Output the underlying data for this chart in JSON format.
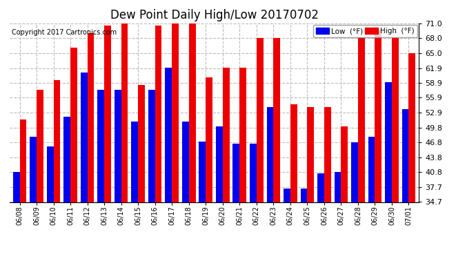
{
  "title": "Dew Point Daily High/Low 20170702",
  "copyright": "Copyright 2017 Cartronics.com",
  "dates": [
    "06/08",
    "06/09",
    "06/10",
    "06/11",
    "06/12",
    "06/13",
    "06/14",
    "06/15",
    "06/16",
    "06/17",
    "06/18",
    "06/19",
    "06/20",
    "06/21",
    "06/22",
    "06/23",
    "06/24",
    "06/25",
    "06/26",
    "06/27",
    "06/28",
    "06/29",
    "06/30",
    "07/01"
  ],
  "low": [
    40.8,
    48.0,
    46.0,
    52.0,
    61.0,
    57.5,
    57.5,
    51.0,
    57.5,
    62.0,
    51.0,
    47.0,
    50.0,
    46.5,
    46.5,
    54.0,
    37.5,
    37.5,
    40.5,
    40.8,
    46.8,
    48.0,
    59.0,
    53.5
  ],
  "high": [
    51.5,
    57.5,
    59.5,
    66.0,
    69.0,
    70.5,
    71.0,
    58.5,
    70.5,
    71.0,
    71.0,
    60.0,
    62.0,
    62.0,
    68.0,
    68.0,
    54.5,
    54.0,
    54.0,
    50.0,
    68.0,
    69.5,
    68.0,
    65.0
  ],
  "low_color": "#0000ee",
  "high_color": "#ee0000",
  "bg_color": "#ffffff",
  "grid_color": "#bbbbbb",
  "ylim_min": 34.7,
  "ylim_max": 71.0,
  "yticks": [
    34.7,
    37.7,
    40.8,
    43.8,
    46.8,
    49.8,
    52.9,
    55.9,
    58.9,
    61.9,
    65.0,
    68.0,
    71.0
  ],
  "title_fontsize": 12,
  "copyright_fontsize": 7,
  "legend_labels": [
    "Low  (°F)",
    "High  (°F)"
  ],
  "bar_width": 0.4,
  "figwidth": 6.9,
  "figheight": 3.75,
  "dpi": 100
}
